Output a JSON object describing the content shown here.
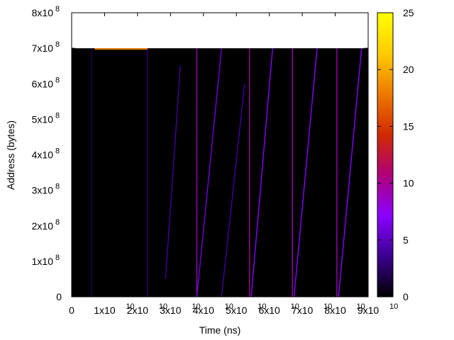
{
  "chart_data": {
    "type": "heatmap",
    "title": "",
    "xlabel": "Time (ns)",
    "ylabel": "Address (bytes)",
    "xlim": [
      0,
      90000000000
    ],
    "ylim": [
      0,
      800000000
    ],
    "x_ticks": [
      {
        "base": "0",
        "exp": ""
      },
      {
        "base": "1x10",
        "exp": "10"
      },
      {
        "base": "2x10",
        "exp": "10"
      },
      {
        "base": "3x10",
        "exp": "10"
      },
      {
        "base": "4x10",
        "exp": "10"
      },
      {
        "base": "5x10",
        "exp": "10"
      },
      {
        "base": "6x10",
        "exp": "10"
      },
      {
        "base": "7x10",
        "exp": "10"
      },
      {
        "base": "8x10",
        "exp": "10"
      },
      {
        "base": "9x10",
        "exp": "10"
      }
    ],
    "y_ticks": [
      {
        "base": "0",
        "exp": ""
      },
      {
        "base": "1x10",
        "exp": "8"
      },
      {
        "base": "2x10",
        "exp": "8"
      },
      {
        "base": "3x10",
        "exp": "8"
      },
      {
        "base": "4x10",
        "exp": "8"
      },
      {
        "base": "5x10",
        "exp": "8"
      },
      {
        "base": "6x10",
        "exp": "8"
      },
      {
        "base": "7x10",
        "exp": "8"
      },
      {
        "base": "8x10",
        "exp": "8"
      }
    ],
    "data_extent": {
      "x": [
        0,
        90000000000
      ],
      "y": [
        0,
        700000000
      ]
    },
    "background_value": 0,
    "colorbar": {
      "range": [
        0,
        25
      ],
      "ticks": [
        "0",
        "5",
        "10",
        "15",
        "20",
        "25"
      ],
      "colors": [
        "#000000",
        "#3b0090",
        "#8a00ff",
        "#b0007a",
        "#d02a00",
        "#ee7a00",
        "#ffcc00",
        "#ffff00"
      ]
    },
    "streaks": [
      {
        "x": [
          6000000000,
          6000000000
        ],
        "y": [
          0,
          700000000
        ],
        "value": 2
      },
      {
        "x": [
          23000000000,
          23000000000
        ],
        "y": [
          0,
          700000000
        ],
        "value": 3
      },
      {
        "x": [
          38000000000,
          38000000000
        ],
        "y": [
          0,
          700000000
        ],
        "value": 9
      },
      {
        "x": [
          54000000000,
          54000000000
        ],
        "y": [
          0,
          700000000
        ],
        "value": 10
      },
      {
        "x": [
          67000000000,
          67000000000
        ],
        "y": [
          0,
          700000000
        ],
        "value": 9
      },
      {
        "x": [
          80500000000,
          80500000000
        ],
        "y": [
          0,
          700000000
        ],
        "value": 9
      },
      {
        "x": [
          38000000000,
          45500000000
        ],
        "y": [
          0,
          700000000
        ],
        "value": 6
      },
      {
        "x": [
          54500000000,
          61000000000
        ],
        "y": [
          0,
          700000000
        ],
        "value": 7
      },
      {
        "x": [
          67500000000,
          74500000000
        ],
        "y": [
          0,
          700000000
        ],
        "value": 7
      },
      {
        "x": [
          81000000000,
          88000000000
        ],
        "y": [
          0,
          700000000
        ],
        "value": 7
      },
      {
        "x": [
          28500000000,
          33000000000
        ],
        "y": [
          50000000,
          650000000
        ],
        "value": 4
      },
      {
        "x": [
          45500000000,
          52500000000
        ],
        "y": [
          0,
          600000000
        ],
        "value": 4
      }
    ],
    "hot_band": {
      "x": [
        7000000000,
        23000000000
      ],
      "y": 700000000,
      "value": 18
    }
  }
}
